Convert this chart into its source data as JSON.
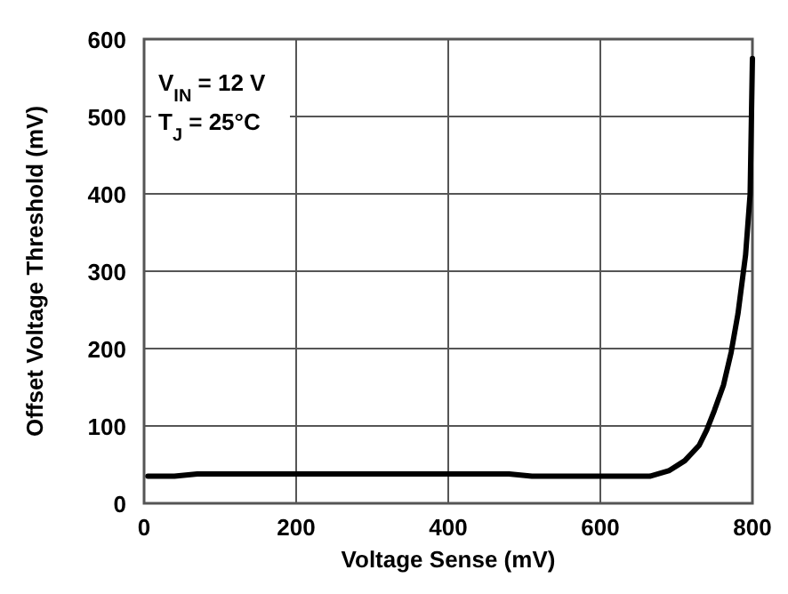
{
  "chart_data": {
    "type": "line",
    "xlabel": "Voltage Sense (mV)",
    "ylabel": "Offset Voltage Threshold (mV)",
    "annotations": [
      "V$_{IN}$ = 12 V",
      "T$_{J}$ = 25°C"
    ],
    "x": [
      5,
      40,
      70,
      480,
      510,
      665,
      690,
      711,
      730,
      740,
      750,
      762,
      772,
      781,
      791,
      797,
      800
    ],
    "series": [
      {
        "color": "#000000",
        "values": [
          35,
          35,
          38,
          38,
          35,
          35,
          42,
          55,
          75,
          95,
          120,
          153,
          195,
          245,
          321,
          400,
          575
        ]
      }
    ],
    "xlim": [
      0,
      800
    ],
    "xticks": [
      0,
      200,
      400,
      600,
      800
    ],
    "ylim": [
      0,
      600
    ],
    "yticks": [
      0,
      100,
      200,
      300,
      400,
      500,
      600
    ],
    "grid": true,
    "marker": "none",
    "line_style": "solid"
  }
}
